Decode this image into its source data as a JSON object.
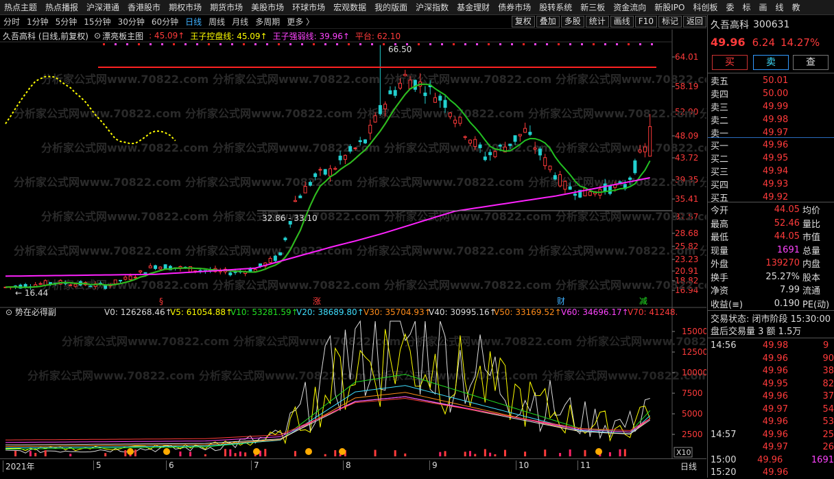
{
  "menu": [
    "热点主题",
    "热点播报",
    "沪深港通",
    "香港股市",
    "期权市场",
    "期货市场",
    "美股市场",
    "环球市场",
    "宏观数据",
    "我的版面",
    "沪深指数",
    "基金理财",
    "债券市场",
    "股转系统",
    "新三板",
    "资金流向",
    "新股IPO",
    "科创板",
    "委",
    "标",
    "画",
    "线",
    "教"
  ],
  "periods": [
    "分时",
    "1分钟",
    "5分钟",
    "15分钟",
    "30分钟",
    "60分钟",
    "日线",
    "周线",
    "月线",
    "多周期",
    "更多 〉"
  ],
  "active_period": "日线",
  "tools": [
    "复权",
    "叠加",
    "多股",
    "统计",
    "画线",
    "F10",
    "标记",
    "返回"
  ],
  "main": {
    "title": "久吾高科 (日线,前复权)",
    "indicator": "漂亮板主图",
    "val1": ": 45.09↑",
    "line1": "王子控盘线: 45.09↑",
    "line2": "王子强弱线: 39.96↑",
    "line3": "平台: 62.10",
    "high_label": "66.50",
    "low_label": "16.44",
    "range_label": "32.86 - 33.10",
    "y_ticks": [
      "64.01",
      "58.19",
      "52.90",
      "48.09",
      "43.72",
      "39.35",
      "35.41",
      "31.87",
      "28.68",
      "25.82",
      "23.23",
      "20.91",
      "18.82",
      "16.94"
    ],
    "markers": [
      "§",
      "涨",
      "财",
      "减"
    ]
  },
  "sub": {
    "name": "势在必得副",
    "v0": "V0: 126268.46↑",
    "v5": "V5: 61054.88↑",
    "v10": "V10: 53281.59↑",
    "v20": "V20: 38689.80↑",
    "v30": "V30: 35704.93↑",
    "v40": "V40: 30995.16↑",
    "v50": "V50: 33169.52↑",
    "v60": "V60: 34696.17↑",
    "v70": "V70: 41248.",
    "y_ticks": [
      "15000",
      "12500",
      "10000",
      "7500",
      "5000",
      "2500"
    ],
    "multiplier": "X10"
  },
  "watermark": "分析家公式网www.70822.com",
  "x_axis": [
    "2021年",
    "5",
    "6",
    "7",
    "8",
    "9",
    "10",
    "11"
  ],
  "x_axis_right": "日线",
  "panel": {
    "name": "久吾高科",
    "code": "300631",
    "price": "49.96",
    "change": "6.24",
    "pct": "14.27%",
    "buy_btn": "买",
    "sell_btn": "卖",
    "query_btn": "查",
    "asks": [
      [
        "卖五",
        "50.01"
      ],
      [
        "卖四",
        "50.00"
      ],
      [
        "卖三",
        "49.99"
      ],
      [
        "卖二",
        "49.98"
      ],
      [
        "卖一",
        "49.97"
      ]
    ],
    "bids": [
      [
        "买一",
        "49.96"
      ],
      [
        "买二",
        "49.95"
      ],
      [
        "买三",
        "49.94"
      ],
      [
        "买四",
        "49.93"
      ],
      [
        "买五",
        "49.92"
      ]
    ],
    "stats": [
      [
        "今开",
        "44.05",
        "均价",
        ""
      ],
      [
        "最高",
        "52.46",
        "量比",
        ""
      ],
      [
        "最低",
        "44.05",
        "市值",
        ""
      ],
      [
        "现量",
        "1691",
        "总量",
        ""
      ],
      [
        "外盘",
        "139270",
        "内盘",
        ""
      ],
      [
        "换手",
        "25.27%",
        "股本",
        ""
      ],
      [
        "净资",
        "7.99",
        "流通",
        ""
      ],
      [
        "收益(≡)",
        "0.190",
        "PE(动)",
        ""
      ]
    ],
    "status_label": "交易状态: 闭市阶段 15:30:00",
    "after_hours": "盘后交易量 3 额 1.5万",
    "ticks": [
      [
        "14:56",
        "49.98",
        "9"
      ],
      [
        "",
        "49.96",
        "90"
      ],
      [
        "",
        "49.96",
        "38"
      ],
      [
        "",
        "49.95",
        "82"
      ],
      [
        "",
        "49.96",
        "37"
      ],
      [
        "",
        "49.97",
        "54"
      ],
      [
        "",
        "49.96",
        "53"
      ],
      [
        "14:57",
        "49.96",
        "25"
      ],
      [
        "",
        "49.97",
        "26"
      ],
      [
        "15:00",
        "49.96",
        "1691"
      ],
      [
        "15:20",
        "49.96",
        ""
      ]
    ]
  }
}
